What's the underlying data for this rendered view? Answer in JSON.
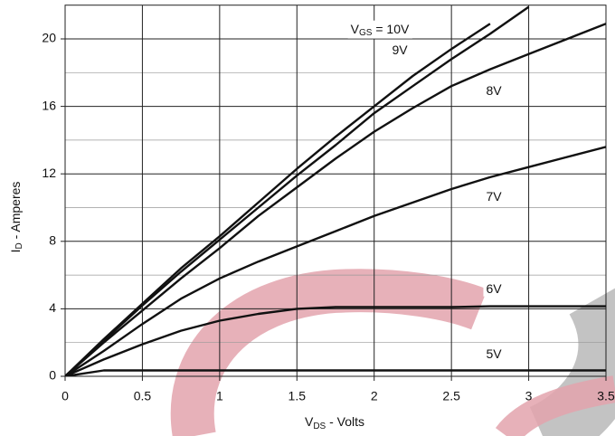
{
  "chart_data": {
    "type": "line",
    "xlabel": [
      "V",
      "DS",
      " - Volts"
    ],
    "ylabel": [
      "I",
      "D",
      " - Amperes"
    ],
    "x": [
      0,
      0.25,
      0.5,
      0.75,
      1,
      1.25,
      1.5,
      1.75,
      2,
      2.25,
      2.5,
      2.75,
      3,
      3.25,
      3.5
    ],
    "series": [
      {
        "name": "10V",
        "color": "#111111",
        "values": [
          0,
          2.2,
          4.3,
          6.4,
          8.3,
          10.3,
          12.3,
          14.2,
          16.0,
          17.8,
          19.4,
          20.9,
          null,
          null,
          null
        ]
      },
      {
        "name": "9V",
        "color": "#111111",
        "values": [
          0,
          2.1,
          4.2,
          6.2,
          8.1,
          10.0,
          11.9,
          13.7,
          15.6,
          17.2,
          18.8,
          20.3,
          21.9,
          null,
          null
        ]
      },
      {
        "name": "8V",
        "color": "#111111",
        "values": [
          0,
          2.0,
          3.9,
          5.8,
          7.6,
          9.5,
          11.2,
          12.9,
          14.5,
          15.9,
          17.2,
          18.2,
          19.1,
          20.0,
          20.9
        ]
      },
      {
        "name": "7V",
        "color": "#111111",
        "values": [
          0,
          1.5,
          3.1,
          4.6,
          5.8,
          6.8,
          7.7,
          8.6,
          9.5,
          10.3,
          11.1,
          11.8,
          12.4,
          13.0,
          13.6
        ]
      },
      {
        "name": "6V",
        "color": "#111111",
        "values": [
          0,
          1.0,
          1.9,
          2.7,
          3.3,
          3.7,
          4.0,
          4.1,
          4.1,
          4.1,
          4.1,
          4.15,
          4.15,
          4.15,
          4.15
        ]
      },
      {
        "name": "5V",
        "color": "#111111",
        "values": [
          0,
          0.35,
          0.35,
          0.35,
          0.35,
          0.35,
          0.35,
          0.35,
          0.35,
          0.35,
          0.35,
          0.35,
          0.35,
          0.35,
          0.35
        ]
      }
    ],
    "series_label_prefix": [
      "V",
      "GS",
      " = "
    ],
    "xlim": [
      0,
      3.5
    ],
    "ylim": [
      0,
      22
    ],
    "xticks": [
      0,
      0.5,
      1,
      1.5,
      2,
      2.5,
      3,
      3.5
    ],
    "yticks": [
      0,
      4,
      8,
      12,
      16,
      20
    ],
    "minor_yticks": [
      2,
      6,
      10,
      14,
      18
    ],
    "grid": true
  }
}
